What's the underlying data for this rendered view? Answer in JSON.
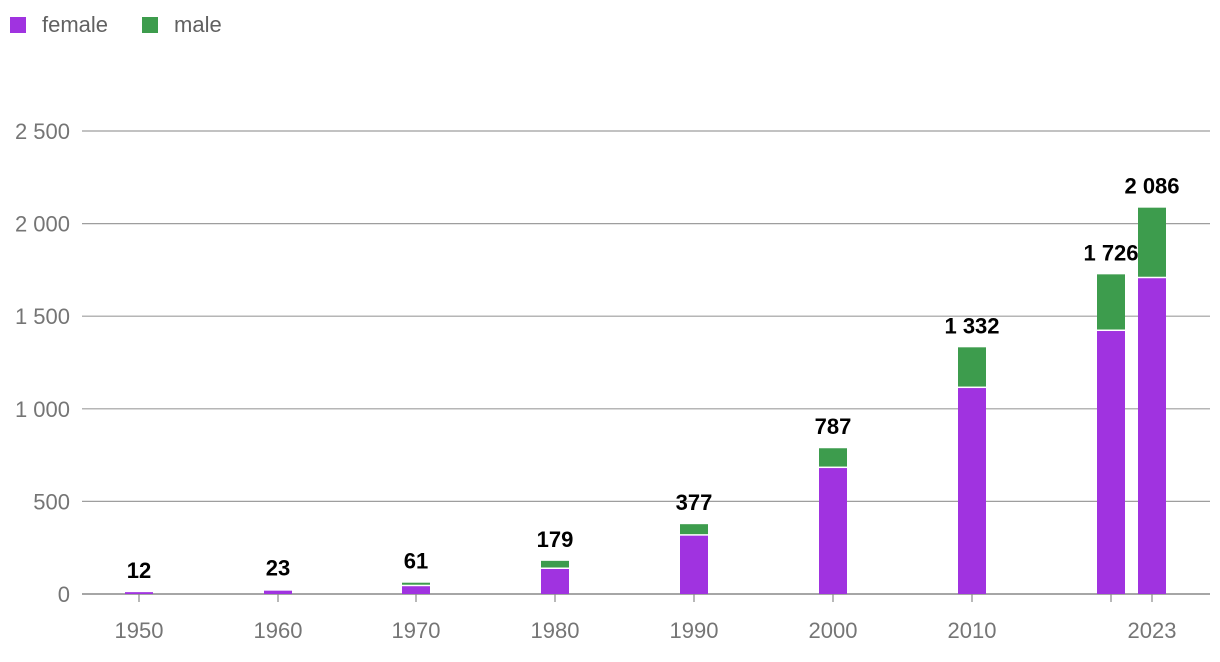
{
  "chart_data": {
    "type": "bar",
    "stacked": true,
    "categories": [
      "1950",
      "1960",
      "1970",
      "1980",
      "1990",
      "2000",
      "2010",
      "",
      "2023"
    ],
    "series": [
      {
        "name": "female",
        "color": "#a033e0",
        "values": [
          10,
          18,
          42,
          135,
          315,
          680,
          1112,
          1420,
          1705
        ]
      },
      {
        "name": "male",
        "color": "#3d9c4d",
        "values": [
          2,
          5,
          19,
          44,
          62,
          107,
          220,
          306,
          381
        ]
      }
    ],
    "totals": [
      "12",
      "23",
      "61",
      "179",
      "377",
      "787",
      "1 332",
      "1 726",
      "2 086"
    ],
    "y_ticks": [
      "0",
      "500",
      "1 000",
      "1 500",
      "2 000",
      "2 500"
    ],
    "ylim": [
      0,
      2500
    ],
    "grid": true,
    "legend": "top-left",
    "title": "",
    "xlabel": "",
    "ylabel": ""
  }
}
